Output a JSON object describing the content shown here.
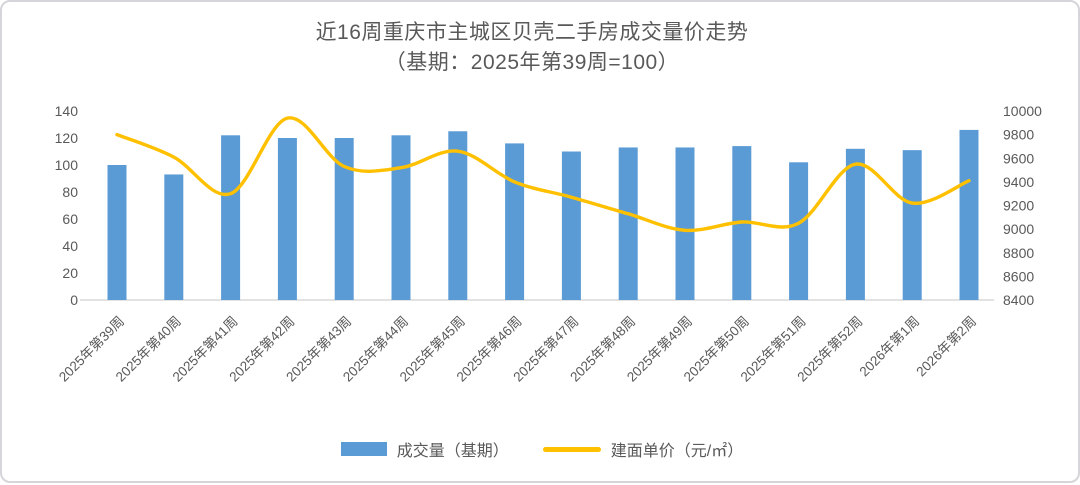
{
  "title": "近16周重庆市主城区贝壳二手房成交量价走势",
  "subtitle": "（基期：2025年第39周=100）",
  "legend": {
    "bars_label": "成交量（基期）",
    "line_label": "建面单价（元/㎡）"
  },
  "colors": {
    "bar": "#5B9BD5",
    "line": "#FFC000",
    "text": "#595959",
    "axis_line": "#D9D9D9",
    "frame_border": "#D5D5DA"
  },
  "chart_data": {
    "type": "bar",
    "combo": "bar+line",
    "title": "近16周重庆市主城区贝壳二手房成交量价走势",
    "subtitle": "（基期：2025年第39周=100）",
    "categories": [
      "2025年第39周",
      "2025年第40周",
      "2025年第41周",
      "2025年第42周",
      "2025年第43周",
      "2025年第44周",
      "2025年第45周",
      "2025年第46周",
      "2025年第47周",
      "2025年第48周",
      "2025年第49周",
      "2025年第50周",
      "2025年第51周",
      "2025年第52周",
      "2026年第1周",
      "2026年第2周"
    ],
    "series": [
      {
        "name": "成交量（基期）",
        "type": "bar",
        "axis": "left",
        "color": "#5B9BD5",
        "values": [
          100,
          93,
          122,
          120,
          120,
          122,
          125,
          116,
          110,
          113,
          113,
          114,
          102,
          112,
          111,
          126
        ]
      },
      {
        "name": "建面单价（元/㎡）",
        "type": "line",
        "axis": "right",
        "color": "#FFC000",
        "smooth": true,
        "values": [
          9800,
          9610,
          9300,
          9940,
          9530,
          9520,
          9660,
          9400,
          9270,
          9130,
          8990,
          9060,
          9050,
          9550,
          9220,
          9410
        ]
      }
    ],
    "left_axis": {
      "min": 0,
      "max": 140,
      "step": 20,
      "ticks": [
        0,
        20,
        40,
        60,
        80,
        100,
        120,
        140
      ]
    },
    "right_axis": {
      "min": 8400,
      "max": 10000,
      "step": 200,
      "ticks": [
        8400,
        8600,
        8800,
        9000,
        9200,
        9400,
        9600,
        9800,
        10000
      ]
    },
    "grid": false,
    "legend_position": "bottom",
    "x_label_rotation": -45
  }
}
